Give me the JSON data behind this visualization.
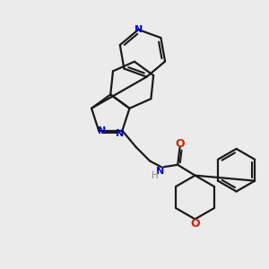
{
  "bg_color": "#ebebeb",
  "bond_color": "#1a1a1a",
  "nitrogen_color": "#0000cc",
  "oxygen_color": "#cc2200",
  "line_width": 1.6,
  "dbo": 0.12,
  "figsize": [
    3.0,
    3.0
  ],
  "dpi": 100,
  "xlim": [
    0,
    10
  ],
  "ylim": [
    0,
    10
  ]
}
